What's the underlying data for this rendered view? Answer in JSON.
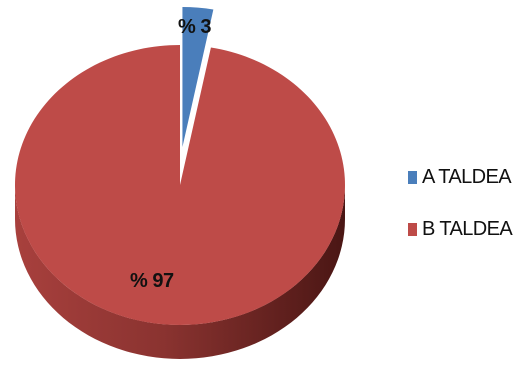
{
  "chart_data": {
    "type": "pie",
    "style": "3d-exploded",
    "title": "",
    "categories": [
      "A TALDEA",
      "B TALDEA"
    ],
    "values": [
      3,
      97
    ],
    "data_labels": [
      "% 3",
      "% 97"
    ],
    "colors": [
      "#4a7ebb",
      "#be4b48"
    ],
    "side_colors": [
      "#2f5a8c",
      "#7a2b28"
    ],
    "legend_position": "right",
    "exploded_slice": "A TALDEA"
  }
}
